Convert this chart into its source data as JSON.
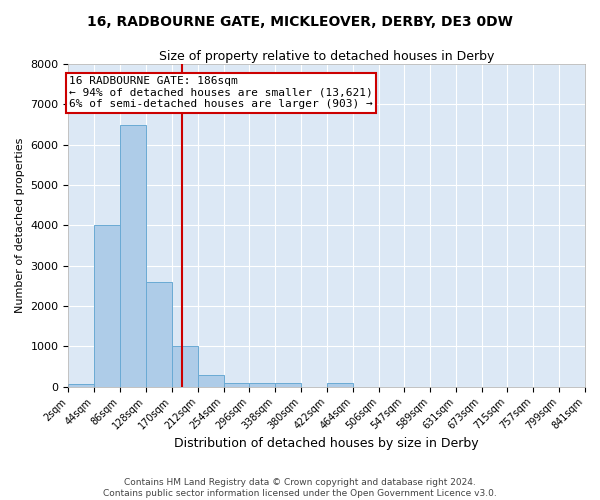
{
  "title1": "16, RADBOURNE GATE, MICKLEOVER, DERBY, DE3 0DW",
  "title2": "Size of property relative to detached houses in Derby",
  "xlabel": "Distribution of detached houses by size in Derby",
  "ylabel": "Number of detached properties",
  "footer1": "Contains HM Land Registry data © Crown copyright and database right 2024.",
  "footer2": "Contains public sector information licensed under the Open Government Licence v3.0.",
  "bin_edges": [
    2,
    44,
    86,
    128,
    170,
    212,
    254,
    296,
    338,
    380,
    422,
    464,
    506,
    547,
    589,
    631,
    673,
    715,
    757,
    799,
    841
  ],
  "bar_heights": [
    75,
    4000,
    6500,
    2600,
    1000,
    300,
    100,
    100,
    80,
    0,
    100,
    0,
    0,
    0,
    0,
    0,
    0,
    0,
    0,
    0
  ],
  "bar_color": "#aecce8",
  "bar_edge_color": "#6aaad4",
  "property_size": 186,
  "red_line_color": "#cc0000",
  "annotation_line1": "16 RADBOURNE GATE: 186sqm",
  "annotation_line2": "← 94% of detached houses are smaller (13,621)",
  "annotation_line3": "6% of semi-detached houses are larger (903) →",
  "annotation_box_color": "#ffffff",
  "annotation_box_edge_color": "#cc0000",
  "ylim": [
    0,
    8000
  ],
  "yticks": [
    0,
    1000,
    2000,
    3000,
    4000,
    5000,
    6000,
    7000,
    8000
  ],
  "background_color": "#dce8f5",
  "grid_color": "#ffffff",
  "fig_background": "#ffffff"
}
